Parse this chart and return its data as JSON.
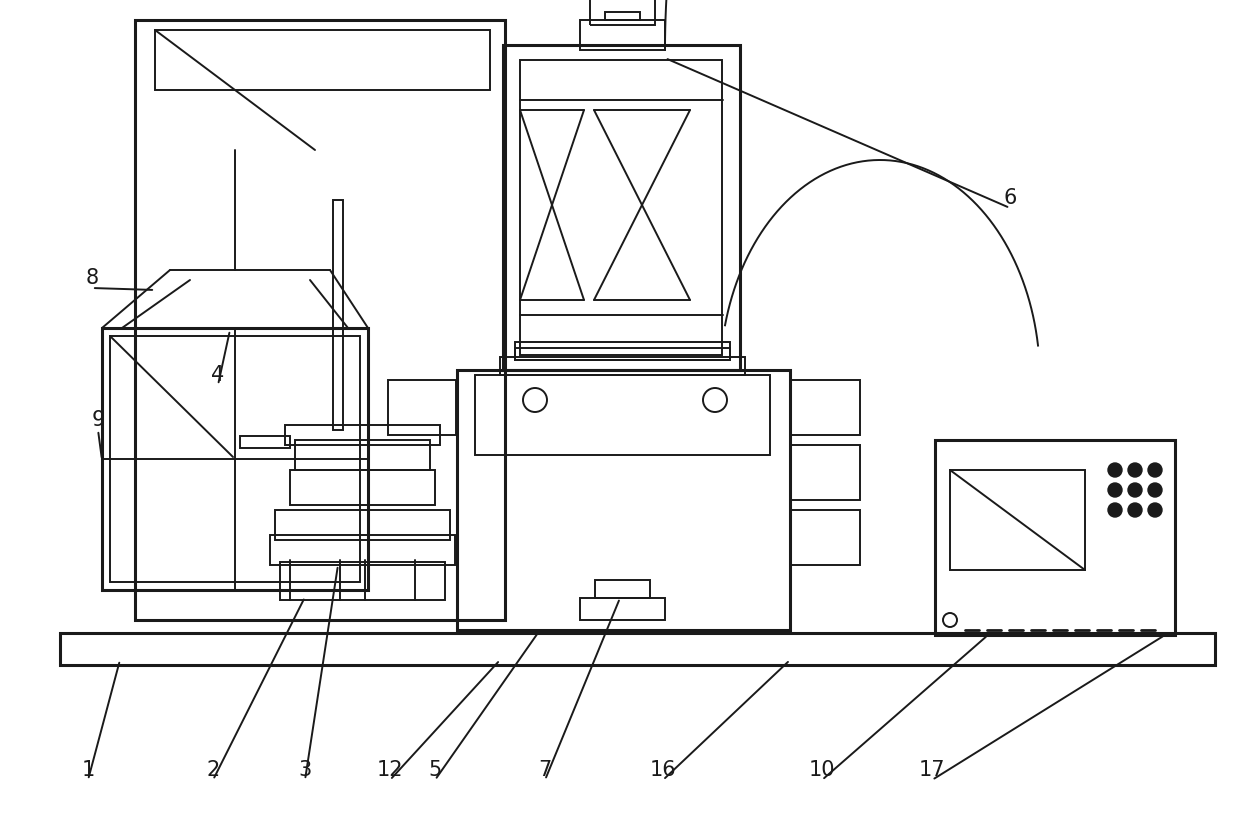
{
  "bg_color": "#ffffff",
  "line_color": "#1a1a1a",
  "lw": 1.4,
  "lw_thick": 2.2,
  "fig_w": 12.4,
  "fig_h": 8.38,
  "dpi": 100
}
